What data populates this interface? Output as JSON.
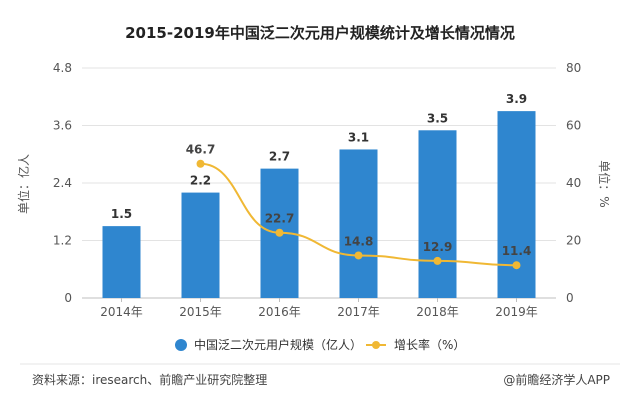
{
  "chart_data": {
    "type": "bar",
    "title": "2015-2019年中国泛二次元用户规模统计及增长情况情况",
    "categories": [
      "2014年",
      "2015年",
      "2016年",
      "2017年",
      "2018年",
      "2019年"
    ],
    "series": [
      {
        "name": "中国泛二次元用户规模（亿人）",
        "type": "bar",
        "axis": "left",
        "values": [
          1.5,
          2.2,
          2.7,
          3.1,
          3.5,
          3.9
        ]
      },
      {
        "name": "增长率（%）",
        "type": "line",
        "axis": "right",
        "values": [
          null,
          46.7,
          22.7,
          14.8,
          12.9,
          11.4
        ]
      }
    ],
    "ylabel_left": "单位：亿人",
    "ylabel_right": "单位：%",
    "ylim_left": [
      0,
      4.8
    ],
    "yticks_left": [
      "0",
      "1.2",
      "2.4",
      "3.6",
      "4.8"
    ],
    "ylim_right": [
      0,
      80
    ],
    "yticks_right": [
      "0",
      "20",
      "40",
      "60",
      "80"
    ],
    "grid": true,
    "legend": "bottom"
  },
  "colors": {
    "bar": "#2f86cf",
    "line": "#f0b834",
    "grid": "#e3e3e3"
  },
  "footer": {
    "source": "资料来源：iresearch、前瞻产业研究院整理",
    "credit": "@前瞻经济学人APP"
  }
}
